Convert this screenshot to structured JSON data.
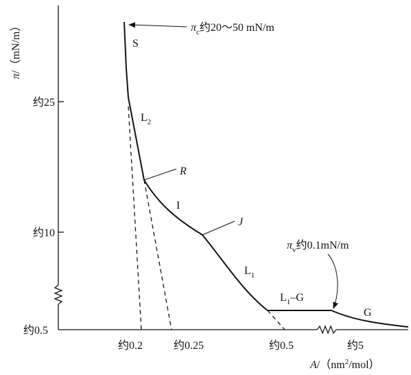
{
  "axes": {
    "y_title": {
      "symbol": "π",
      "unit": "/（mN/m）"
    },
    "x_title": {
      "symbol": "A",
      "unit": "/（nm",
      "sup": "2",
      "unit_end": "/mol）"
    },
    "y_labels": [
      "约25",
      "约10",
      "约0.5"
    ],
    "x_labels": [
      "约0.2",
      "约0.25",
      "约0.5",
      "约5"
    ]
  },
  "regions": {
    "S": "S",
    "L2": {
      "main": "L",
      "sub": "2"
    },
    "I": "I",
    "L1": {
      "main": "L",
      "sub": "1"
    },
    "L1G": {
      "main": "L",
      "sub": "1",
      "rest": "–G"
    },
    "G": "G"
  },
  "points": {
    "R": "R",
    "J": "J"
  },
  "annotations": {
    "pi_c": {
      "symbol": "π",
      "sub": "c",
      "text": "约20～50 mN/m"
    },
    "pi_v": {
      "symbol": "π",
      "sub": "v",
      "text": "约0.1mN/m"
    }
  }
}
